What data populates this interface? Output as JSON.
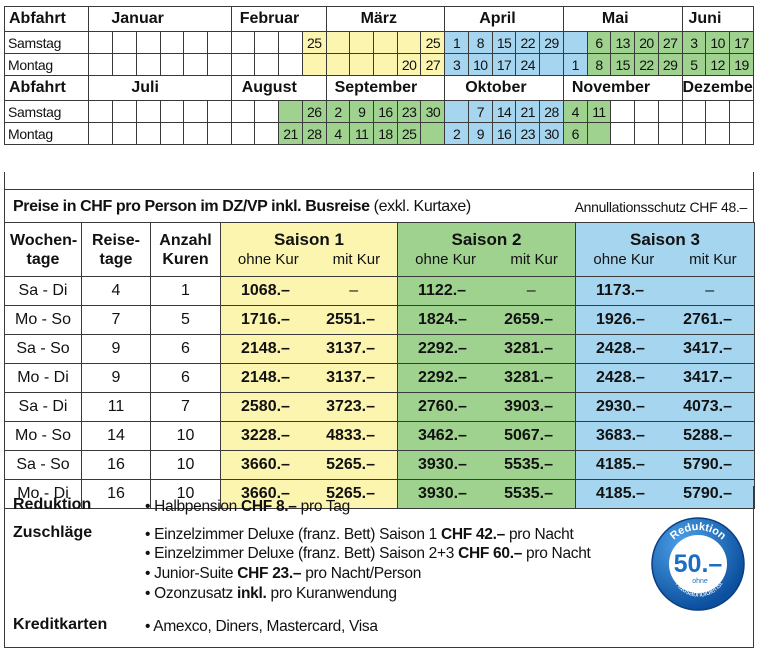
{
  "calendar": {
    "h1": {
      "label": "Abfahrt",
      "months": [
        "Januar",
        "Februar",
        "März",
        "April",
        "Mai",
        "Juni"
      ]
    },
    "h2": {
      "label": "Abfahrt",
      "months": [
        "Juli",
        "August",
        "September",
        "Oktober",
        "November",
        "Dezember"
      ]
    },
    "day_labels": {
      "saturday": "Samstag",
      "monday": "Montag"
    },
    "r1_sat": [
      "25",
      "25",
      "1",
      "8",
      "15",
      "22",
      "29",
      "6",
      "13",
      "20",
      "27",
      "3",
      "10",
      "17"
    ],
    "r1_mon": [
      "20",
      "27",
      "3",
      "10",
      "17",
      "24",
      "1",
      "8",
      "15",
      "22",
      "29",
      "5",
      "12",
      "19"
    ],
    "r2_sat": [
      "26",
      "2",
      "9",
      "16",
      "23",
      "30",
      "7",
      "14",
      "21",
      "28",
      "4",
      "11"
    ],
    "r2_mon": [
      "21",
      "28",
      "4",
      "11",
      "18",
      "25",
      "2",
      "9",
      "16",
      "23",
      "30",
      "6"
    ],
    "colors": {
      "season1": "#fbf5b0",
      "season2": "#9fd28f",
      "season3": "#a6d6ef"
    }
  },
  "prices": {
    "title_bold": "Preise in CHF pro Person im DZ/VP inkl. Busreise",
    "title_normal": " (exkl. Kurtaxe)",
    "cancellation": "Annullationsschutz CHF 48.–",
    "headers": {
      "weekdays": "Wochen-tage",
      "days": "Reise-tage",
      "cures": "Anzahl Kuren",
      "s1": "Saison 1",
      "s2": "Saison 2",
      "s3": "Saison 3",
      "without": "ohne Kur",
      "with": "mit Kur"
    },
    "rows": [
      {
        "w": "Sa - Di",
        "d": "4",
        "k": "1",
        "s1a": "1068.–",
        "s1b": "–",
        "s2a": "1122.–",
        "s2b": "–",
        "s3a": "1173.–",
        "s3b": "–"
      },
      {
        "w": "Mo - So",
        "d": "7",
        "k": "5",
        "s1a": "1716.–",
        "s1b": "2551.–",
        "s2a": "1824.–",
        "s2b": "2659.–",
        "s3a": "1926.–",
        "s3b": "2761.–"
      },
      {
        "w": "Sa - So",
        "d": "9",
        "k": "6",
        "s1a": "2148.–",
        "s1b": "3137.–",
        "s2a": "2292.–",
        "s2b": "3281.–",
        "s3a": "2428.–",
        "s3b": "3417.–"
      },
      {
        "w": "Mo - Di",
        "d": "9",
        "k": "6",
        "s1a": "2148.–",
        "s1b": "3137.–",
        "s2a": "2292.–",
        "s2b": "3281.–",
        "s3a": "2428.–",
        "s3b": "3417.–"
      },
      {
        "w": "Sa - Di",
        "d": "11",
        "k": "7",
        "s1a": "2580.–",
        "s1b": "3723.–",
        "s2a": "2760.–",
        "s2b": "3903.–",
        "s3a": "2930.–",
        "s3b": "4073.–"
      },
      {
        "w": "Mo - So",
        "d": "14",
        "k": "10",
        "s1a": "3228.–",
        "s1b": "4833.–",
        "s2a": "3462.–",
        "s2b": "5067.–",
        "s3a": "3683.–",
        "s3b": "5288.–"
      },
      {
        "w": "Sa - So",
        "d": "16",
        "k": "10",
        "s1a": "3660.–",
        "s1b": "5265.–",
        "s2a": "3930.–",
        "s2b": "5535.–",
        "s3a": "4185.–",
        "s3b": "5790.–"
      },
      {
        "w": "Mo - Di",
        "d": "16",
        "k": "10",
        "s1a": "3660.–",
        "s1b": "5265.–",
        "s2a": "3930.–",
        "s2b": "5535.–",
        "s3a": "4185.–",
        "s3b": "5790.–"
      }
    ]
  },
  "footer": {
    "reduction_label": "Reduktion",
    "reduction_item": {
      "pre": "• Halbpension ",
      "bold": "CHF 8.–",
      "post": " pro Tag"
    },
    "surcharge_label": "Zuschläge",
    "surcharges": [
      {
        "pre": "• Einzelzimmer Deluxe (franz. Bett) Saison 1 ",
        "bold": "CHF 42.–",
        "post": " pro Nacht"
      },
      {
        "pre": "• Einzelzimmer Deluxe (franz. Bett) Saison 2+3 ",
        "bold": "CHF 60.–",
        "post": " pro Nacht"
      },
      {
        "pre": "• Junior-Suite ",
        "bold": "CHF 23.–",
        "post": " pro Nacht/Person"
      },
      {
        "pre": "• Ozonzusatz ",
        "bold": "inkl.",
        "post": " pro Kuranwendung"
      }
    ],
    "cards_label": "Kreditkarten",
    "cards_item": "• Amexco, Diners, Mastercard, Visa"
  },
  "badge": {
    "top": "Reduktion",
    "amount": "50.–",
    "bottom_1": "ohne",
    "bottom_2": "Hausabholdienst",
    "color": "#1a6fc4"
  }
}
